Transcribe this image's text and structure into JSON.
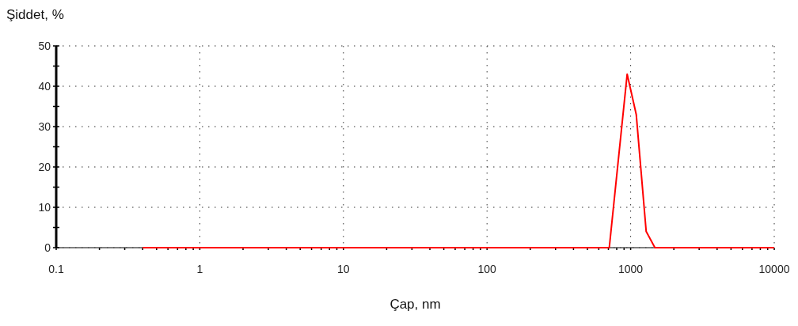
{
  "chart_data": {
    "type": "line",
    "ylabel": "Şiddet, %",
    "xlabel": "Çap, nm",
    "log": "x",
    "xlim": [
      0.1,
      10000
    ],
    "ylim": [
      0,
      50
    ],
    "xticks": [
      0.1,
      {
        "value": 0.2,
        "label": null
      },
      {
        "value": 0.3,
        "label": null
      },
      {
        "value": 0.4,
        "label": null
      },
      {
        "value": 0.5,
        "label": null
      },
      {
        "value": 0.6,
        "label": null
      },
      {
        "value": 0.7,
        "label": null
      },
      {
        "value": 0.8,
        "label": null
      },
      {
        "value": 0.9,
        "label": null
      },
      1,
      {
        "value": 2,
        "label": null
      },
      {
        "value": 3,
        "label": null
      },
      {
        "value": 4,
        "label": null
      },
      {
        "value": 5,
        "label": null
      },
      {
        "value": 6,
        "label": null
      },
      {
        "value": 7,
        "label": null
      },
      {
        "value": 8,
        "label": null
      },
      {
        "value": 9,
        "label": null
      },
      10,
      {
        "value": 20,
        "label": null
      },
      {
        "value": 30,
        "label": null
      },
      {
        "value": 40,
        "label": null
      },
      {
        "value": 50,
        "label": null
      },
      {
        "value": 60,
        "label": null
      },
      {
        "value": 70,
        "label": null
      },
      {
        "value": 80,
        "label": null
      },
      {
        "value": 90,
        "label": null
      },
      100,
      {
        "value": 200,
        "label": null
      },
      {
        "value": 300,
        "label": null
      },
      {
        "value": 400,
        "label": null
      },
      {
        "value": 500,
        "label": null
      },
      {
        "value": 600,
        "label": null
      },
      {
        "value": 700,
        "label": null
      },
      {
        "value": 800,
        "label": null
      },
      {
        "value": 900,
        "label": null
      },
      1000,
      {
        "value": 2000,
        "label": null
      },
      {
        "value": 3000,
        "label": null
      },
      {
        "value": 4000,
        "label": null
      },
      {
        "value": 5000,
        "label": null
      },
      {
        "value": 6000,
        "label": null
      },
      {
        "value": 7000,
        "label": null
      },
      {
        "value": 8000,
        "label": null
      },
      {
        "value": 9000,
        "label": null
      },
      10000
    ],
    "yticks": [
      0,
      {
        "value": 5,
        "label": null
      },
      10,
      {
        "value": 15,
        "label": null
      },
      20,
      {
        "value": 25,
        "label": null
      },
      30,
      {
        "value": 35,
        "label": null
      },
      40,
      {
        "value": 45,
        "label": null
      },
      50
    ],
    "grid": true,
    "line_style": "solid",
    "marker": "none",
    "series": [
      {
        "color": "#ff0000",
        "x": [
          0.4,
          710,
          946,
          1094,
          1283,
          1476,
          10000
        ],
        "values": [
          0,
          0,
          43,
          33,
          4,
          0,
          0
        ]
      }
    ]
  }
}
